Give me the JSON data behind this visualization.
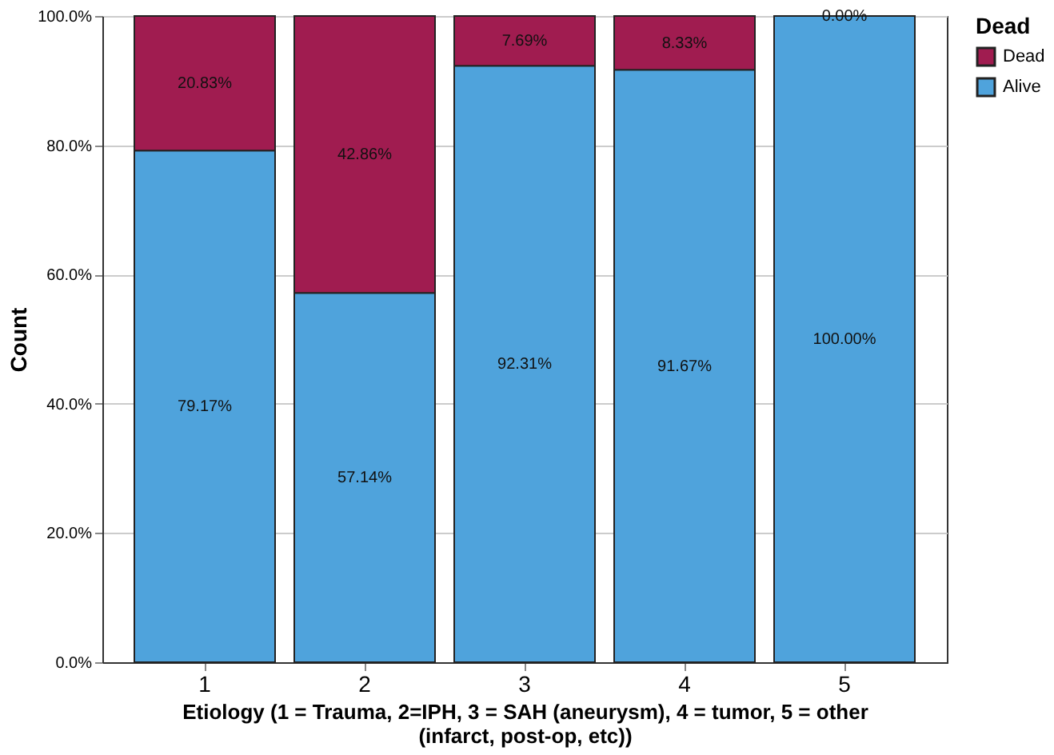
{
  "chart_data": {
    "type": "bar",
    "stacked": true,
    "xlabel": "Etiology (1 = Trauma, 2=IPH, 3 = SAH (aneurysm), 4 = tumor, 5 = other (infarct, post-op, etc))",
    "ylabel": "Count",
    "legend_title": "Dead",
    "legend": "top right",
    "grid": "y",
    "categories": [
      "1",
      "2",
      "3",
      "4",
      "5"
    ],
    "series": [
      {
        "name": "Alive",
        "color": "#4fa3dc",
        "values": [
          79.17,
          57.14,
          92.31,
          91.67,
          100
        ],
        "value_labels": [
          "79.17%",
          "57.14%",
          "92.31%",
          "91.67%",
          "100.00%"
        ]
      },
      {
        "name": "Dead",
        "color": "#a01c50",
        "values": [
          20.83,
          42.86,
          7.69,
          8.33,
          0
        ],
        "value_labels": [
          "20.83%",
          "42.86%",
          "7.69%",
          "8.33%",
          "0.00%"
        ]
      }
    ],
    "ylim": [
      0,
      100
    ],
    "yticks": [
      {
        "value": 0,
        "label": "0.0%"
      },
      {
        "value": 20,
        "label": "20.0%"
      },
      {
        "value": 40,
        "label": "40.0%"
      },
      {
        "value": 60,
        "label": "60.0%"
      },
      {
        "value": 80,
        "label": "80.0%"
      },
      {
        "value": 100,
        "label": "100.0%"
      }
    ]
  }
}
